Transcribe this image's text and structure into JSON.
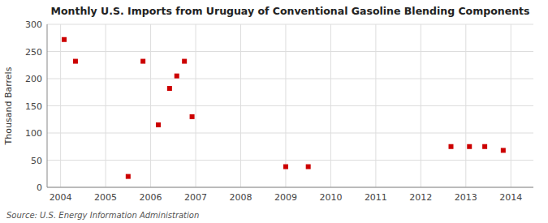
{
  "chart_data": {
    "type": "scatter",
    "title": "Monthly U.S. Imports from Uruguay of Conventional Gasoline Blending Components",
    "y_label": "Thousand Barrels",
    "source": "Source: U.S. Energy Information Administration",
    "color": "#cc0000",
    "marker": "square",
    "grid": true,
    "xlim": [
      2003.7,
      2014.5
    ],
    "ylim": [
      0,
      300
    ],
    "xticks": [
      2004,
      2005,
      2006,
      2007,
      2008,
      2009,
      2010,
      2011,
      2012,
      2013,
      2014
    ],
    "yticks": [
      0,
      50,
      100,
      150,
      200,
      250,
      300
    ],
    "x": [
      2004.08,
      2004.33,
      2005.5,
      2005.83,
      2006.17,
      2006.42,
      2006.58,
      2006.75,
      2006.92,
      2009.0,
      2009.5,
      2012.67,
      2013.08,
      2013.42,
      2013.83
    ],
    "values": [
      272,
      232,
      20,
      232,
      115,
      182,
      205,
      232,
      130,
      38,
      38,
      75,
      75,
      75,
      68
    ]
  }
}
